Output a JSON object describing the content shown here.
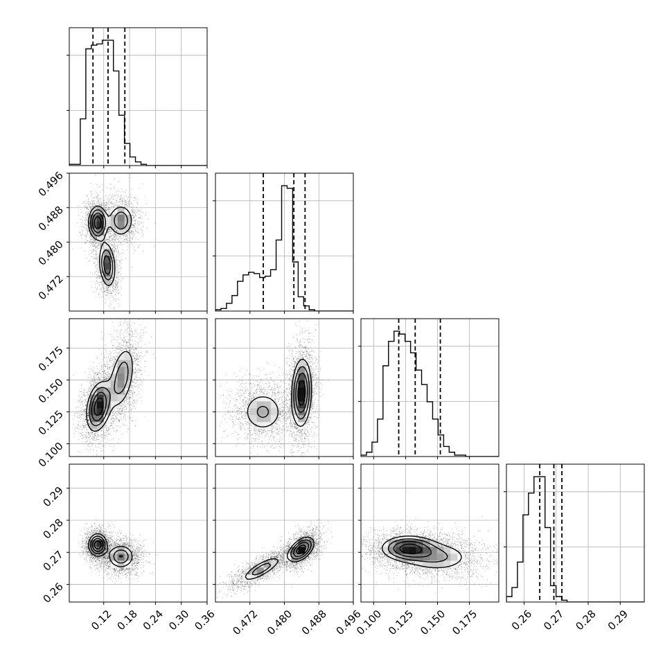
{
  "chart_data": {
    "type": "corner",
    "title": "",
    "parameters": [
      "",
      "",
      "",
      ""
    ],
    "grid": true,
    "colors": {
      "line": "#000000",
      "grid": "#b0b0b0",
      "density": "#000000"
    },
    "axes": [
      {
        "range": [
          0.04,
          0.36
        ],
        "ticks": [
          0.12,
          0.18,
          0.24,
          0.3,
          0.36
        ],
        "tick_labels": [
          "0.12",
          "0.18",
          "0.24",
          "0.30",
          "0.36"
        ]
      },
      {
        "range": [
          0.464,
          0.496
        ],
        "ticks": [
          0.472,
          0.48,
          0.488,
          0.496
        ],
        "tick_labels": [
          "0.472",
          "0.480",
          "0.488",
          "0.496"
        ]
      },
      {
        "range": [
          0.09,
          0.198
        ],
        "ticks": [
          0.1,
          0.125,
          0.15,
          0.175
        ],
        "tick_labels": [
          "0.100",
          "0.125",
          "0.150",
          "0.175"
        ]
      },
      {
        "range": [
          0.2545,
          0.2975
        ],
        "ticks": [
          0.26,
          0.27,
          0.28,
          0.29
        ],
        "tick_labels": [
          "0.26",
          "0.27",
          "0.28",
          "0.29"
        ]
      }
    ],
    "histograms": [
      {
        "edges_start": 0.04,
        "bin_width": 0.0128,
        "counts": [
          1,
          1,
          38,
          95,
          98,
          99,
          102,
          102,
          77,
          41,
          18,
          7,
          3,
          1,
          0,
          0,
          0,
          0,
          0,
          0,
          0,
          0,
          0,
          0,
          0
        ],
        "quantiles": [
          0.095,
          0.13,
          0.169
        ]
      },
      {
        "edges_start": 0.464,
        "bin_width": 0.00128,
        "counts": [
          1,
          2,
          6,
          12,
          23,
          28,
          30,
          29,
          26,
          27,
          32,
          55,
          97,
          95,
          38,
          11,
          4,
          1,
          0,
          0,
          0,
          0,
          0,
          0,
          0
        ],
        "quantiles": [
          0.4751,
          0.4822,
          0.4848
        ]
      },
      {
        "edges_start": 0.09,
        "bin_width": 0.00432,
        "counts": [
          1,
          3,
          10,
          26,
          63,
          80,
          87,
          85,
          80,
          72,
          60,
          50,
          38,
          26,
          15,
          7,
          3,
          1,
          1,
          0,
          0,
          0,
          0,
          0,
          0
        ],
        "quantiles": [
          0.1196,
          0.1325,
          0.1522
        ]
      },
      {
        "edges_start": 0.2545,
        "bin_width": 0.00172,
        "counts": [
          3,
          8,
          22,
          48,
          60,
          69,
          69,
          41,
          9,
          3,
          1,
          0,
          0,
          0,
          0,
          0,
          0,
          0,
          0,
          0,
          0,
          0,
          0,
          0,
          0
        ],
        "quantiles": [
          0.2649,
          0.2693,
          0.2718
        ]
      }
    ],
    "pairs": [
      {
        "row": 1,
        "col": 0,
        "modes": [
          {
            "x": 0.106,
            "y": 0.4845,
            "sx": 0.012,
            "sy": 0.0022,
            "rho": 0.0,
            "w": 0.36
          },
          {
            "x": 0.16,
            "y": 0.485,
            "sx": 0.017,
            "sy": 0.0022,
            "rho": 0.0,
            "w": 0.3
          },
          {
            "x": 0.128,
            "y": 0.4747,
            "sx": 0.011,
            "sy": 0.003,
            "rho": -0.2,
            "w": 0.34
          }
        ]
      },
      {
        "row": 2,
        "col": 0,
        "modes": [
          {
            "x": 0.108,
            "y": 0.129,
            "sx": 0.016,
            "sy": 0.011,
            "rho": 0.3,
            "w": 0.55
          },
          {
            "x": 0.162,
            "y": 0.152,
            "sx": 0.018,
            "sy": 0.015,
            "rho": 0.4,
            "w": 0.45
          }
        ]
      },
      {
        "row": 2,
        "col": 1,
        "modes": [
          {
            "x": 0.475,
            "y": 0.125,
            "sx": 0.003,
            "sy": 0.01,
            "rho": 0.0,
            "w": 0.4
          },
          {
            "x": 0.484,
            "y": 0.14,
            "sx": 0.0013,
            "sy": 0.015,
            "rho": 0.1,
            "w": 0.6
          }
        ]
      },
      {
        "row": 3,
        "col": 0,
        "modes": [
          {
            "x": 0.106,
            "y": 0.2723,
            "sx": 0.012,
            "sy": 0.002,
            "rho": 0.0,
            "w": 0.5
          },
          {
            "x": 0.16,
            "y": 0.2687,
            "sx": 0.018,
            "sy": 0.0022,
            "rho": 0.0,
            "w": 0.5
          }
        ]
      },
      {
        "row": 3,
        "col": 1,
        "modes": [
          {
            "x": 0.4747,
            "y": 0.2648,
            "sx": 0.0028,
            "sy": 0.0024,
            "rho": 0.8,
            "w": 0.4
          },
          {
            "x": 0.4839,
            "y": 0.2709,
            "sx": 0.0017,
            "sy": 0.0022,
            "rho": 0.5,
            "w": 0.6
          }
        ]
      },
      {
        "row": 3,
        "col": 2,
        "modes": [
          {
            "x": 0.127,
            "y": 0.2713,
            "sx": 0.012,
            "sy": 0.0022,
            "rho": 0.0,
            "w": 0.55
          },
          {
            "x": 0.15,
            "y": 0.2685,
            "sx": 0.016,
            "sy": 0.0028,
            "rho": 0.0,
            "w": 0.45
          }
        ]
      }
    ]
  }
}
